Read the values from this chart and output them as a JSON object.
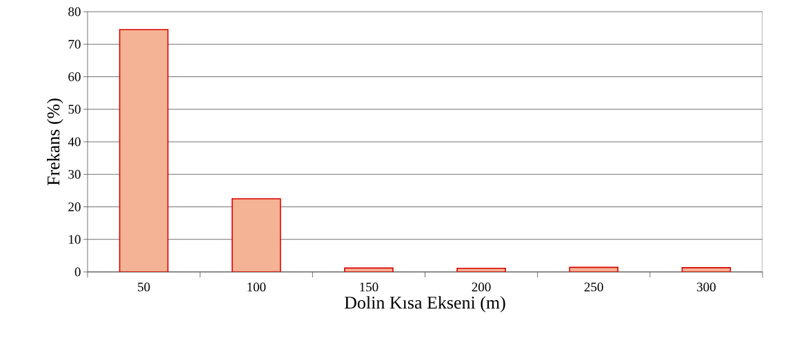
{
  "chart_data": {
    "type": "bar",
    "xlabel": "Dolin Kısa Ekseni (m)",
    "ylabel": "Frekans (%)",
    "categories": [
      "50",
      "100",
      "150",
      "200",
      "250",
      "300"
    ],
    "values": [
      74.5,
      22.5,
      1.2,
      1.1,
      1.4,
      1.3
    ],
    "color": "#f4b394",
    "ylim": [
      0,
      80
    ],
    "yticks": [
      0,
      10,
      20,
      30,
      40,
      50,
      60,
      70,
      80
    ],
    "grid": "y"
  }
}
